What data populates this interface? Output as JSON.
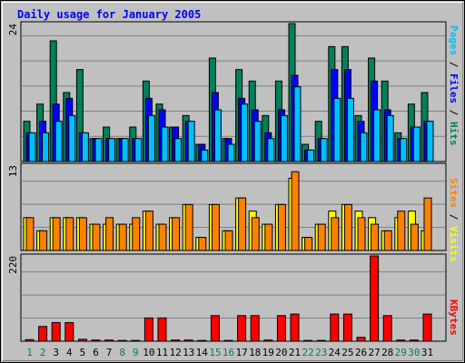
{
  "title": "Daily usage for January 2005",
  "colors": {
    "hits": "#00805c",
    "files": "#0000ff",
    "pages": "#00c0ff",
    "visits": "#ffff00",
    "sites": "#ff8000",
    "kbytes": "#ff0000",
    "day_weekday": "#000000",
    "day_weekend": "#00805c"
  },
  "chart_data": [
    {
      "type": "bar",
      "panel": "hits-files-pages",
      "y_max_label": "24",
      "ylim": [
        0,
        24
      ],
      "legend": {
        "pages": "Pages",
        "files": "Files",
        "hits": "Hits",
        "sep": " / "
      },
      "categories": [
        "1",
        "2",
        "3",
        "4",
        "5",
        "6",
        "7",
        "8",
        "9",
        "10",
        "11",
        "12",
        "13",
        "14",
        "15",
        "16",
        "17",
        "18",
        "19",
        "20",
        "21",
        "22",
        "23",
        "24",
        "25",
        "26",
        "27",
        "28",
        "29",
        "30",
        "31"
      ],
      "weekend_days": [
        "1",
        "2",
        "8",
        "9",
        "15",
        "16",
        "22",
        "23",
        "29",
        "30"
      ],
      "series": [
        {
          "name": "Hits",
          "values": [
            7,
            10,
            21,
            12,
            16,
            4,
            6,
            4,
            6,
            14,
            10,
            6,
            8,
            3,
            18,
            4,
            16,
            14,
            8,
            14,
            24,
            3,
            7,
            20,
            20,
            8,
            18,
            14,
            5,
            10,
            12
          ]
        },
        {
          "name": "Files",
          "values": [
            5,
            7,
            10,
            11,
            5,
            4,
            4,
            4,
            4,
            11,
            9,
            6,
            7,
            3,
            12,
            4,
            11,
            9,
            5,
            9,
            15,
            2,
            4,
            16,
            16,
            7,
            14,
            9,
            4,
            6,
            7
          ]
        },
        {
          "name": "Pages",
          "values": [
            5,
            5,
            7,
            8,
            5,
            4,
            4,
            4,
            4,
            8,
            6,
            4,
            7,
            2,
            9,
            3,
            10,
            7,
            4,
            8,
            13,
            2,
            4,
            11,
            11,
            5,
            9,
            8,
            4,
            6,
            7
          ]
        }
      ]
    },
    {
      "type": "bar",
      "panel": "visits-sites",
      "y_max_label": "13",
      "ylim": [
        0,
        13
      ],
      "legend": {
        "sites": "Sites",
        "visits": "Visits",
        "sep": " / "
      },
      "categories": [
        "1",
        "2",
        "3",
        "4",
        "5",
        "6",
        "7",
        "8",
        "9",
        "10",
        "11",
        "12",
        "13",
        "14",
        "15",
        "16",
        "17",
        "18",
        "19",
        "20",
        "21",
        "22",
        "23",
        "24",
        "25",
        "26",
        "27",
        "28",
        "29",
        "30",
        "31"
      ],
      "series": [
        {
          "name": "Visits",
          "values": [
            5,
            3,
            5,
            5,
            5,
            4,
            4,
            4,
            4,
            6,
            4,
            5,
            7,
            2,
            7,
            3,
            8,
            6,
            4,
            7,
            11,
            2,
            4,
            6,
            7,
            6,
            5,
            3,
            5,
            6,
            3
          ]
        },
        {
          "name": "Sites",
          "values": [
            5,
            3,
            5,
            5,
            5,
            4,
            5,
            4,
            5,
            6,
            4,
            5,
            7,
            2,
            7,
            3,
            8,
            5,
            4,
            7,
            12,
            2,
            4,
            5,
            7,
            5,
            4,
            3,
            6,
            4,
            8
          ]
        }
      ]
    },
    {
      "type": "bar",
      "panel": "kbytes",
      "y_max_label": "220",
      "ylim": [
        0,
        220
      ],
      "legend": {
        "kbytes": "KBytes"
      },
      "categories": [
        "1",
        "2",
        "3",
        "4",
        "5",
        "6",
        "7",
        "8",
        "9",
        "10",
        "11",
        "12",
        "13",
        "14",
        "15",
        "16",
        "17",
        "18",
        "19",
        "20",
        "21",
        "22",
        "23",
        "24",
        "25",
        "26",
        "27",
        "28",
        "29",
        "30",
        "31"
      ],
      "series": [
        {
          "name": "KBytes",
          "values": [
            4,
            38,
            48,
            48,
            5,
            3,
            3,
            2,
            2,
            60,
            60,
            3,
            3,
            2,
            66,
            2,
            66,
            66,
            3,
            66,
            70,
            2,
            2,
            70,
            70,
            10,
            220,
            66,
            3,
            3,
            70
          ]
        }
      ]
    }
  ]
}
